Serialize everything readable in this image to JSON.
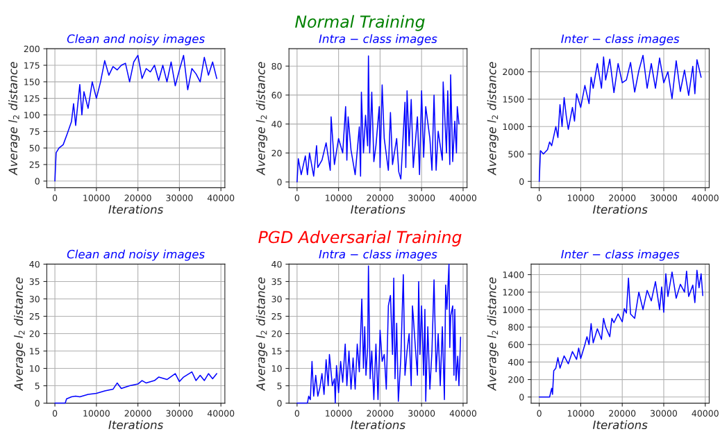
{
  "chart_data": [
    {
      "type": "line",
      "title": "Clean and noisy images",
      "xlabel": "Iterations",
      "ylabel": "Average l$_{2}$ distance",
      "annotations": [
        "Normal Training"
      ],
      "grid": true,
      "xlim": [
        -1950,
        40950
      ],
      "xticks": [
        0,
        10000,
        20000,
        30000,
        40000
      ],
      "ylim": [
        -10,
        200
      ],
      "yticks": [
        0,
        25,
        50,
        75,
        100,
        125,
        150,
        175,
        200
      ],
      "series": [
        {
          "color": "#0000ff",
          "x": [
            0,
            300,
            1000,
            2000,
            3000,
            4000,
            4500,
            5000,
            6000,
            6500,
            7000,
            8000,
            9000,
            10000,
            11000,
            12000,
            13000,
            14000,
            15000,
            16000,
            17000,
            18000,
            19000,
            20000,
            21000,
            22000,
            23000,
            24000,
            25000,
            26000,
            27000,
            28000,
            29000,
            30000,
            31000,
            32000,
            33000,
            34000,
            35000,
            36000,
            37000,
            38000,
            39000
          ],
          "values": [
            0,
            43,
            50,
            55,
            72,
            90,
            117,
            84,
            146,
            100,
            135,
            110,
            150,
            125,
            150,
            182,
            160,
            173,
            168,
            175,
            178,
            150,
            180,
            190,
            155,
            170,
            165,
            175,
            152,
            175,
            150,
            180,
            144,
            168,
            190,
            138,
            170,
            162,
            150,
            187,
            160,
            180,
            155
          ]
        }
      ]
    },
    {
      "type": "line",
      "title": "Intra − class images",
      "xlabel": "Iterations",
      "ylabel": "Average l$_{2}$ distance",
      "grid": true,
      "xlim": [
        -1950,
        40950
      ],
      "xticks": [
        0,
        10000,
        20000,
        30000,
        40000
      ],
      "ylim": [
        -4,
        92
      ],
      "yticks": [
        0,
        20,
        40,
        60,
        80
      ],
      "series": [
        {
          "color": "#0000ff",
          "x": [
            0,
            300,
            1000,
            2000,
            2500,
            3000,
            4000,
            4700,
            5000,
            6000,
            7000,
            8000,
            8200,
            9000,
            10000,
            11000,
            11700,
            12000,
            12300,
            13000,
            14000,
            15000,
            15300,
            15500,
            16000,
            16500,
            17000,
            17200,
            17500,
            18000,
            18500,
            19000,
            19800,
            20000,
            20500,
            21000,
            22000,
            22500,
            23000,
            24000,
            24500,
            25000,
            26000,
            26200,
            26500,
            27000,
            27500,
            28000,
            29000,
            29500,
            30000,
            30500,
            31000,
            32000,
            32500,
            33000,
            33500,
            34000,
            35000,
            35200,
            36000,
            36300,
            36800,
            37000,
            37500,
            38000,
            38400,
            38600,
            39000
          ],
          "values": [
            0,
            16,
            5,
            18,
            5,
            20,
            4,
            25,
            10,
            15,
            27,
            8,
            45,
            12,
            30,
            20,
            52,
            15,
            45,
            22,
            5,
            38,
            4,
            62,
            20,
            46,
            25,
            87,
            20,
            62,
            14,
            25,
            52,
            10,
            67,
            30,
            8,
            48,
            12,
            30,
            7,
            2,
            55,
            10,
            63,
            25,
            57,
            10,
            45,
            5,
            63,
            17,
            52,
            30,
            8,
            60,
            8,
            35,
            15,
            69,
            20,
            63,
            12,
            74,
            14,
            42,
            20,
            52,
            40
          ]
        }
      ]
    },
    {
      "type": "line",
      "title": "Inter − class images",
      "xlabel": "Iterations",
      "ylabel": "Average l$_{2}$ distance",
      "grid": true,
      "xlim": [
        -1950,
        40950
      ],
      "xticks": [
        0,
        10000,
        20000,
        30000,
        40000
      ],
      "ylim": [
        -115,
        2420
      ],
      "yticks": [
        0,
        500,
        1000,
        1500,
        2000
      ],
      "series": [
        {
          "color": "#0000ff",
          "x": [
            0,
            300,
            1000,
            2000,
            2500,
            3000,
            4000,
            4500,
            5000,
            5500,
            6000,
            6500,
            7000,
            8000,
            8500,
            9000,
            10000,
            11000,
            12000,
            12500,
            13000,
            14000,
            15000,
            15500,
            16000,
            17000,
            18000,
            19000,
            20000,
            21000,
            22000,
            23000,
            24000,
            25000,
            26000,
            27000,
            28000,
            29000,
            30000,
            31000,
            32000,
            33000,
            34000,
            35000,
            36000,
            37000,
            37500,
            38000,
            39000
          ],
          "values": [
            0,
            560,
            500,
            580,
            720,
            650,
            1000,
            800,
            1400,
            1000,
            1530,
            1200,
            950,
            1350,
            1100,
            1600,
            1350,
            1750,
            1420,
            1900,
            1700,
            2150,
            1700,
            2270,
            1850,
            2230,
            1620,
            2150,
            1800,
            1850,
            2170,
            1630,
            2020,
            2300,
            1700,
            2150,
            1700,
            2250,
            1800,
            2000,
            1510,
            2200,
            1640,
            2030,
            1570,
            2100,
            1600,
            2220,
            1900
          ]
        }
      ]
    },
    {
      "type": "line",
      "title": "Clean and noisy images",
      "xlabel": "Iterations",
      "ylabel": "Average l$_{2}$ distance",
      "annotations": [
        "PGD Adversarial Training"
      ],
      "grid": true,
      "xlim": [
        -1950,
        40950
      ],
      "xticks": [
        0,
        10000,
        20000,
        30000,
        40000
      ],
      "ylim": [
        0,
        40
      ],
      "yticks": [
        0,
        5,
        10,
        15,
        20,
        25,
        30,
        35,
        40
      ],
      "series": [
        {
          "color": "#0000ff",
          "x": [
            0,
            2500,
            2800,
            4000,
            5000,
            6000,
            8000,
            10000,
            12000,
            14000,
            15000,
            16000,
            18000,
            20000,
            21000,
            22000,
            24000,
            25000,
            27000,
            29000,
            30000,
            31000,
            33000,
            34000,
            35000,
            36000,
            37000,
            38000,
            39000
          ],
          "values": [
            0,
            0,
            1.2,
            1.8,
            2,
            1.8,
            2.5,
            2.8,
            3.5,
            4,
            5.8,
            4.2,
            5,
            5.5,
            6.5,
            5.8,
            6.5,
            7.5,
            6.8,
            8.5,
            6.2,
            7.5,
            9,
            6.5,
            8,
            6.5,
            8.5,
            7,
            8.5
          ]
        }
      ]
    },
    {
      "type": "line",
      "title": "Intra − class images",
      "xlabel": "Iterations",
      "ylabel": "Average l$_{2}$ distance",
      "grid": true,
      "xlim": [
        -1950,
        40950
      ],
      "xticks": [
        0,
        10000,
        20000,
        30000,
        40000
      ],
      "ylim": [
        0,
        40
      ],
      "yticks": [
        0,
        5,
        10,
        15,
        20,
        25,
        30,
        35,
        40
      ],
      "series": [
        {
          "color": "#0000ff",
          "x": [
            0,
            2500,
            2800,
            3200,
            3600,
            4000,
            4500,
            5000,
            5500,
            6000,
            6500,
            7000,
            7500,
            7800,
            8500,
            9000,
            9200,
            9500,
            10000,
            10500,
            11000,
            11600,
            12000,
            12500,
            13000,
            13500,
            14000,
            14500,
            15000,
            15600,
            16000,
            16300,
            16600,
            17000,
            17200,
            17600,
            18000,
            18500,
            19000,
            19500,
            20000,
            20500,
            21000,
            21500,
            22000,
            22500,
            23000,
            23300,
            23600,
            24000,
            24400,
            25000,
            25600,
            26000,
            26500,
            27000,
            27500,
            27800,
            28000,
            28500,
            29000,
            29300,
            29600,
            30000,
            30500,
            30800,
            31000,
            31500,
            32000,
            32500,
            33000,
            33500,
            34000,
            34500,
            35000,
            35500,
            35800,
            36100,
            36600,
            36800,
            37000,
            37500,
            37800,
            38000,
            38300,
            38700,
            39000,
            39400
          ],
          "values": [
            0,
            0,
            2,
            1,
            12,
            2,
            8,
            2,
            4.5,
            8.5,
            2.5,
            12.5,
            5,
            14,
            5,
            7,
            0,
            10.8,
            3,
            12,
            6,
            17,
            5,
            15,
            4,
            13,
            4,
            17,
            9,
            30,
            10,
            22,
            8,
            16,
            39.5,
            7,
            15,
            1,
            17,
            1,
            21,
            12,
            14,
            4,
            28,
            31,
            14,
            36,
            7,
            23,
            0.5,
            13,
            37,
            8,
            15,
            20,
            5,
            28,
            25,
            16,
            8,
            35,
            14,
            28,
            8,
            27,
            0.5,
            22,
            4,
            15,
            35.5,
            9,
            20,
            5,
            22,
            1,
            34,
            27,
            40,
            16,
            25,
            28,
            8,
            27,
            6.5,
            13.5,
            5,
            19
          ]
        }
      ]
    },
    {
      "type": "line",
      "title": "Inter − class images",
      "xlabel": "Iterations",
      "ylabel": "Average l$_{2}$ distance",
      "grid": true,
      "xlim": [
        -1950,
        40950
      ],
      "xticks": [
        0,
        10000,
        20000,
        30000,
        40000
      ],
      "ylim": [
        -70,
        1520
      ],
      "yticks": [
        0,
        200,
        400,
        600,
        800,
        1000,
        1200,
        1400
      ],
      "series": [
        {
          "color": "#0000ff",
          "x": [
            0,
            2500,
            3000,
            3200,
            3500,
            4000,
            4500,
            5000,
            6000,
            7000,
            8000,
            9000,
            9500,
            10000,
            11000,
            11500,
            12000,
            12500,
            13000,
            14000,
            15000,
            15500,
            16000,
            17000,
            17500,
            18000,
            19000,
            20000,
            20500,
            21000,
            21500,
            22000,
            23000,
            24000,
            25000,
            26000,
            27000,
            28000,
            29000,
            29500,
            30000,
            30500,
            31000,
            32000,
            33000,
            34000,
            35000,
            35500,
            36000,
            37000,
            37500,
            38000,
            38500,
            39000,
            39400
          ],
          "values": [
            0,
            0,
            100,
            30,
            300,
            330,
            450,
            330,
            470,
            380,
            520,
            430,
            560,
            440,
            600,
            690,
            600,
            840,
            620,
            780,
            660,
            900,
            800,
            690,
            900,
            850,
            950,
            860,
            1010,
            960,
            1360,
            950,
            900,
            1200,
            1000,
            1220,
            1100,
            1320,
            1000,
            1260,
            970,
            1410,
            1150,
            1430,
            1130,
            1290,
            1200,
            1440,
            1150,
            1280,
            1080,
            1450,
            1250,
            1410,
            1160
          ]
        }
      ]
    }
  ]
}
